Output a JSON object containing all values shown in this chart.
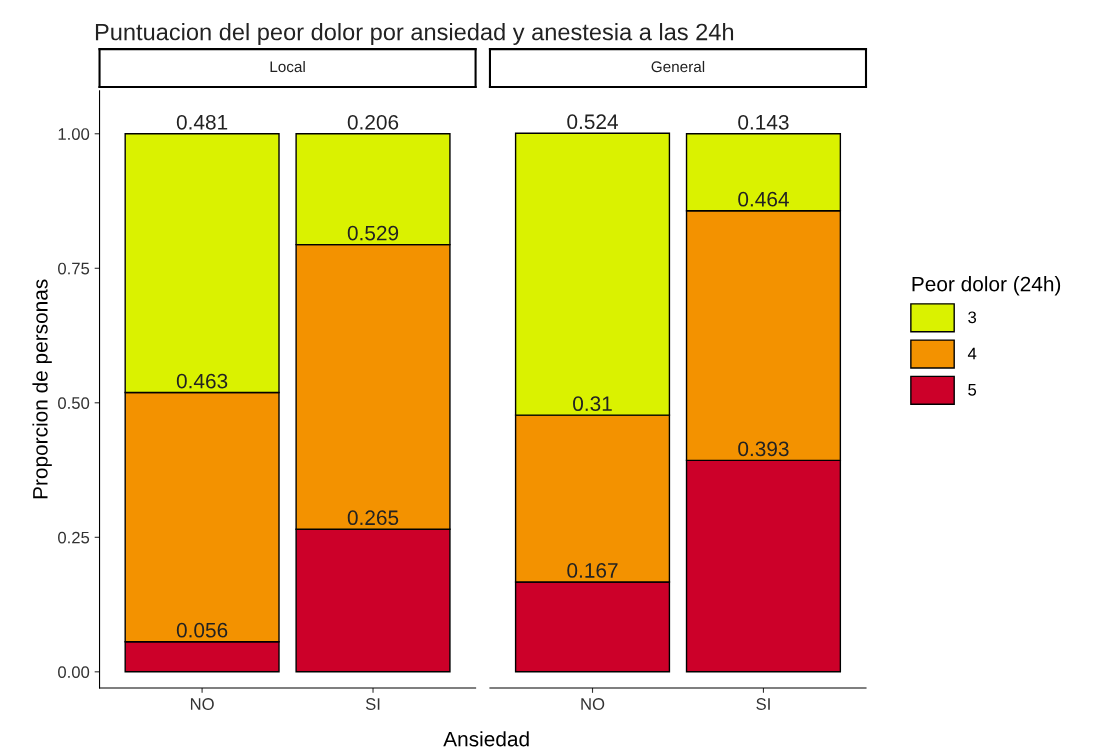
{
  "chart_data": [
    {
      "type": "bar",
      "title": "Puntuacion del peor dolor por ansiedad y anestesia a las 24h",
      "subtitle": "Local",
      "xlabel": "Ansiedad",
      "ylabel": "Proporcion de personas",
      "categories": [
        "NO",
        "SI"
      ],
      "stacked": true,
      "data_labels": true,
      "grid": false,
      "legend": "right",
      "legend_title": "Peor dolor (24h)",
      "ylim": [
        -0.03,
        1.08
      ],
      "yticks": [
        {
          "value": 0,
          "label": "0.00"
        },
        {
          "value": 0.25,
          "label": "0.25"
        },
        {
          "value": 0.5,
          "label": "0.50"
        },
        {
          "value": 0.75,
          "label": "0.75"
        },
        {
          "value": 1,
          "label": "1.00"
        }
      ],
      "series": [
        {
          "name": "5",
          "color": "#cc0029",
          "values": [
            0.056,
            0.265
          ]
        },
        {
          "name": "4",
          "color": "#f39200",
          "values": [
            0.463,
            0.529
          ]
        },
        {
          "name": "3",
          "color": "#daf200",
          "values": [
            0.481,
            0.206
          ]
        }
      ]
    },
    {
      "type": "bar",
      "subtitle": "General",
      "categories": [
        "NO",
        "SI"
      ],
      "stacked": true,
      "data_labels": true,
      "grid": false,
      "tick_labels": "x",
      "series": [
        {
          "color": "#cc0029",
          "values": [
            0.167,
            0.393
          ]
        },
        {
          "color": "#f39200",
          "values": [
            0.31,
            0.464
          ]
        },
        {
          "color": "#daf200",
          "values": [
            0.524,
            0.143
          ]
        }
      ]
    }
  ]
}
